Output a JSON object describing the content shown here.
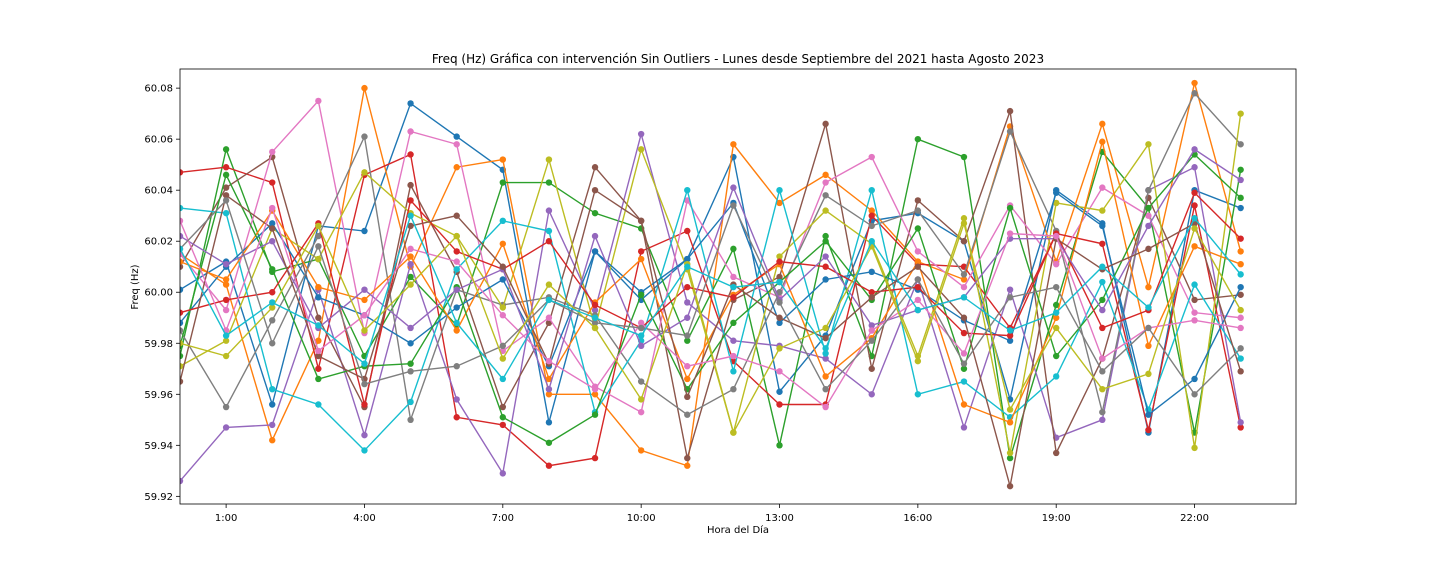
{
  "chart_data": {
    "type": "line",
    "title": "Freq (Hz) Gráfica con intervención Sin Outliers - Lunes desde Septiembre del 2021 hasta Agosto 2023",
    "xlabel": "Hora del Día",
    "ylabel": "Freq (Hz)",
    "x_hours": [
      0,
      1,
      2,
      3,
      4,
      5,
      6,
      7,
      8,
      9,
      10,
      11,
      12,
      13,
      14,
      15,
      16,
      17,
      18,
      19,
      20,
      21,
      22,
      23
    ],
    "x_ticks": [
      1,
      4,
      7,
      10,
      13,
      16,
      19,
      22
    ],
    "x_tick_labels": [
      "1:00",
      "4:00",
      "7:00",
      "10:00",
      "13:00",
      "16:00",
      "19:00",
      "22:00"
    ],
    "xlim": [
      0,
      24.2
    ],
    "ylim": [
      59.917,
      60.0875
    ],
    "y_ticks": [
      59.92,
      59.94,
      59.96,
      59.98,
      60.0,
      60.02,
      60.04,
      60.06,
      60.08
    ],
    "y_tick_labels": [
      "59.92",
      "59.94",
      "59.96",
      "59.98",
      "60.00",
      "60.02",
      "60.04",
      "60.06",
      "60.08"
    ],
    "grid": false,
    "legend": "none",
    "marker": "circle",
    "colors": [
      "#1f77b4",
      "#ff7f0e",
      "#2ca02c",
      "#d62728",
      "#9467bd",
      "#8c564b",
      "#e377c2",
      "#7f7f7f",
      "#bcbd22",
      "#17becf"
    ],
    "series": [
      {
        "values": [
          60.001,
          60.012,
          59.956,
          60.026,
          60.024,
          60.074,
          60.061,
          60.048,
          59.949,
          60.016,
          59.997,
          60.013,
          60.053,
          59.961,
          59.983,
          60.028,
          60.031,
          60.02,
          59.958,
          60.04,
          60.027,
          59.945,
          60.04,
          60.033
        ]
      },
      {
        "values": [
          60.015,
          60.003,
          59.942,
          59.981,
          60.08,
          60.01,
          60.049,
          60.052,
          59.96,
          59.96,
          59.938,
          59.932,
          60.058,
          60.035,
          60.046,
          60.032,
          60.012,
          60.005,
          60.065,
          60.012,
          60.066,
          60.002,
          60.082,
          60.016
        ]
      },
      {
        "values": [
          59.975,
          60.056,
          60.008,
          60.013,
          59.975,
          60.006,
          59.987,
          60.043,
          60.043,
          60.031,
          60.025,
          59.981,
          60.017,
          59.94,
          60.022,
          59.975,
          60.06,
          60.053,
          59.935,
          59.995,
          60.055,
          60.033,
          59.945,
          60.048
        ]
      },
      {
        "values": [
          60.047,
          60.049,
          60.043,
          59.97,
          60.046,
          60.054,
          59.951,
          59.948,
          59.932,
          59.935,
          60.016,
          60.024,
          59.973,
          59.956,
          59.956,
          60.03,
          60.011,
          60.01,
          59.986,
          60.023,
          60.019,
          59.946,
          60.034,
          59.947
        ]
      },
      {
        "values": [
          59.926,
          59.947,
          59.948,
          60.001,
          59.944,
          60.011,
          59.958,
          59.929,
          60.032,
          59.993,
          60.062,
          59.996,
          59.981,
          59.979,
          59.974,
          59.96,
          60.005,
          59.947,
          60.001,
          59.943,
          59.95,
          60.04,
          60.049,
          59.949
        ]
      },
      {
        "values": [
          60.01,
          60.041,
          60.053,
          59.99,
          59.955,
          60.042,
          60.008,
          59.955,
          59.988,
          60.049,
          60.028,
          59.935,
          59.997,
          60.006,
          60.066,
          59.97,
          60.036,
          60.02,
          60.071,
          59.937,
          59.974,
          60.037,
          59.997,
          59.999
        ]
      },
      {
        "values": [
          60.015,
          59.993,
          60.055,
          60.075,
          59.984,
          60.063,
          60.058,
          59.977,
          59.99,
          59.963,
          59.953,
          60.036,
          60.006,
          59.998,
          60.043,
          60.053,
          60.016,
          60.002,
          60.034,
          60.011,
          60.041,
          60.03,
          59.992,
          59.99
        ]
      },
      {
        "values": [
          59.985,
          59.955,
          59.989,
          60.022,
          60.061,
          59.95,
          60.001,
          59.995,
          59.998,
          59.991,
          59.965,
          59.952,
          59.962,
          60.0,
          60.038,
          60.026,
          60.032,
          60.007,
          60.063,
          60.024,
          59.953,
          60.04,
          60.078,
          60.058
        ]
      },
      {
        "values": [
          59.971,
          59.981,
          60.025,
          60.013,
          60.047,
          60.031,
          60.022,
          59.994,
          60.052,
          59.986,
          60.056,
          60.009,
          59.945,
          60.014,
          60.032,
          60.019,
          59.975,
          60.029,
          59.937,
          60.035,
          60.032,
          60.058,
          59.939,
          60.07
        ]
      },
      {
        "values": [
          60.033,
          60.031,
          59.962,
          59.956,
          59.938,
          59.957,
          60.009,
          60.028,
          60.024,
          59.953,
          59.981,
          60.04,
          59.969,
          60.04,
          59.976,
          60.04,
          59.96,
          59.965,
          59.951,
          59.967,
          60.004,
          59.954,
          60.003,
          59.974
        ]
      },
      {
        "values": [
          59.988,
          60.01,
          60.027,
          59.998,
          59.991,
          59.98,
          59.994,
          60.005,
          59.971,
          60.016,
          60.0,
          60.013,
          60.035,
          59.988,
          60.005,
          60.008,
          60.001,
          59.989,
          59.981,
          60.039,
          60.026,
          59.952,
          59.966,
          60.002
        ]
      },
      {
        "values": [
          60.012,
          60.005,
          60.032,
          60.002,
          59.997,
          60.014,
          59.985,
          60.019,
          59.966,
          59.996,
          60.013,
          59.966,
          59.999,
          60.011,
          59.967,
          59.982,
          60.012,
          59.956,
          59.949,
          59.99,
          60.059,
          59.979,
          60.018,
          60.011
        ]
      },
      {
        "values": [
          59.979,
          60.046,
          60.009,
          59.966,
          59.971,
          59.972,
          60.002,
          59.951,
          59.941,
          59.952,
          59.999,
          59.962,
          59.988,
          60.004,
          60.02,
          59.997,
          60.025,
          59.97,
          60.033,
          59.975,
          59.997,
          60.033,
          60.054,
          60.037
        ]
      },
      {
        "values": [
          59.992,
          59.997,
          60.0,
          60.027,
          59.956,
          60.036,
          60.016,
          60.009,
          60.02,
          59.995,
          59.986,
          60.002,
          59.998,
          60.012,
          60.01,
          60.0,
          60.002,
          59.984,
          59.983,
          60.023,
          59.986,
          59.993,
          60.039,
          60.021
        ]
      },
      {
        "values": [
          60.022,
          60.011,
          60.02,
          59.986,
          60.001,
          59.986,
          60.001,
          60.009,
          59.962,
          60.022,
          59.979,
          59.99,
          60.041,
          59.997,
          60.014,
          59.987,
          59.993,
          59.998,
          60.021,
          60.021,
          59.993,
          60.026,
          60.056,
          60.044
        ]
      },
      {
        "values": [
          59.965,
          60.038,
          60.025,
          59.975,
          59.966,
          60.026,
          60.03,
          60.01,
          59.972,
          60.04,
          60.028,
          59.959,
          60.003,
          59.99,
          59.982,
          59.998,
          60.01,
          59.99,
          59.924,
          60.021,
          60.009,
          60.017,
          60.027,
          59.969
        ]
      },
      {
        "values": [
          60.028,
          59.985,
          60.033,
          59.977,
          59.991,
          60.017,
          60.012,
          59.991,
          59.973,
          59.962,
          59.988,
          59.971,
          59.975,
          59.969,
          59.955,
          59.985,
          59.997,
          59.976,
          60.023,
          60.022,
          59.974,
          59.986,
          59.989,
          59.986
        ]
      },
      {
        "values": [
          60.017,
          60.036,
          59.98,
          60.018,
          59.964,
          59.969,
          59.971,
          59.979,
          59.997,
          59.988,
          59.986,
          59.983,
          60.034,
          59.996,
          59.962,
          59.981,
          60.005,
          59.972,
          59.998,
          60.002,
          59.969,
          59.986,
          59.96,
          59.978
        ]
      },
      {
        "values": [
          59.98,
          59.975,
          59.994,
          60.026,
          59.985,
          60.003,
          60.022,
          59.974,
          60.003,
          59.986,
          59.958,
          60.011,
          59.945,
          59.978,
          59.986,
          60.018,
          59.973,
          60.027,
          59.954,
          59.986,
          59.962,
          59.968,
          60.025,
          59.993
        ]
      },
      {
        "values": [
          60.017,
          59.983,
          59.996,
          59.987,
          59.972,
          60.03,
          59.988,
          59.966,
          59.997,
          59.99,
          59.983,
          60.01,
          60.002,
          60.004,
          59.978,
          60.02,
          59.993,
          59.998,
          59.985,
          59.992,
          60.01,
          59.994,
          60.029,
          60.007
        ]
      }
    ]
  }
}
